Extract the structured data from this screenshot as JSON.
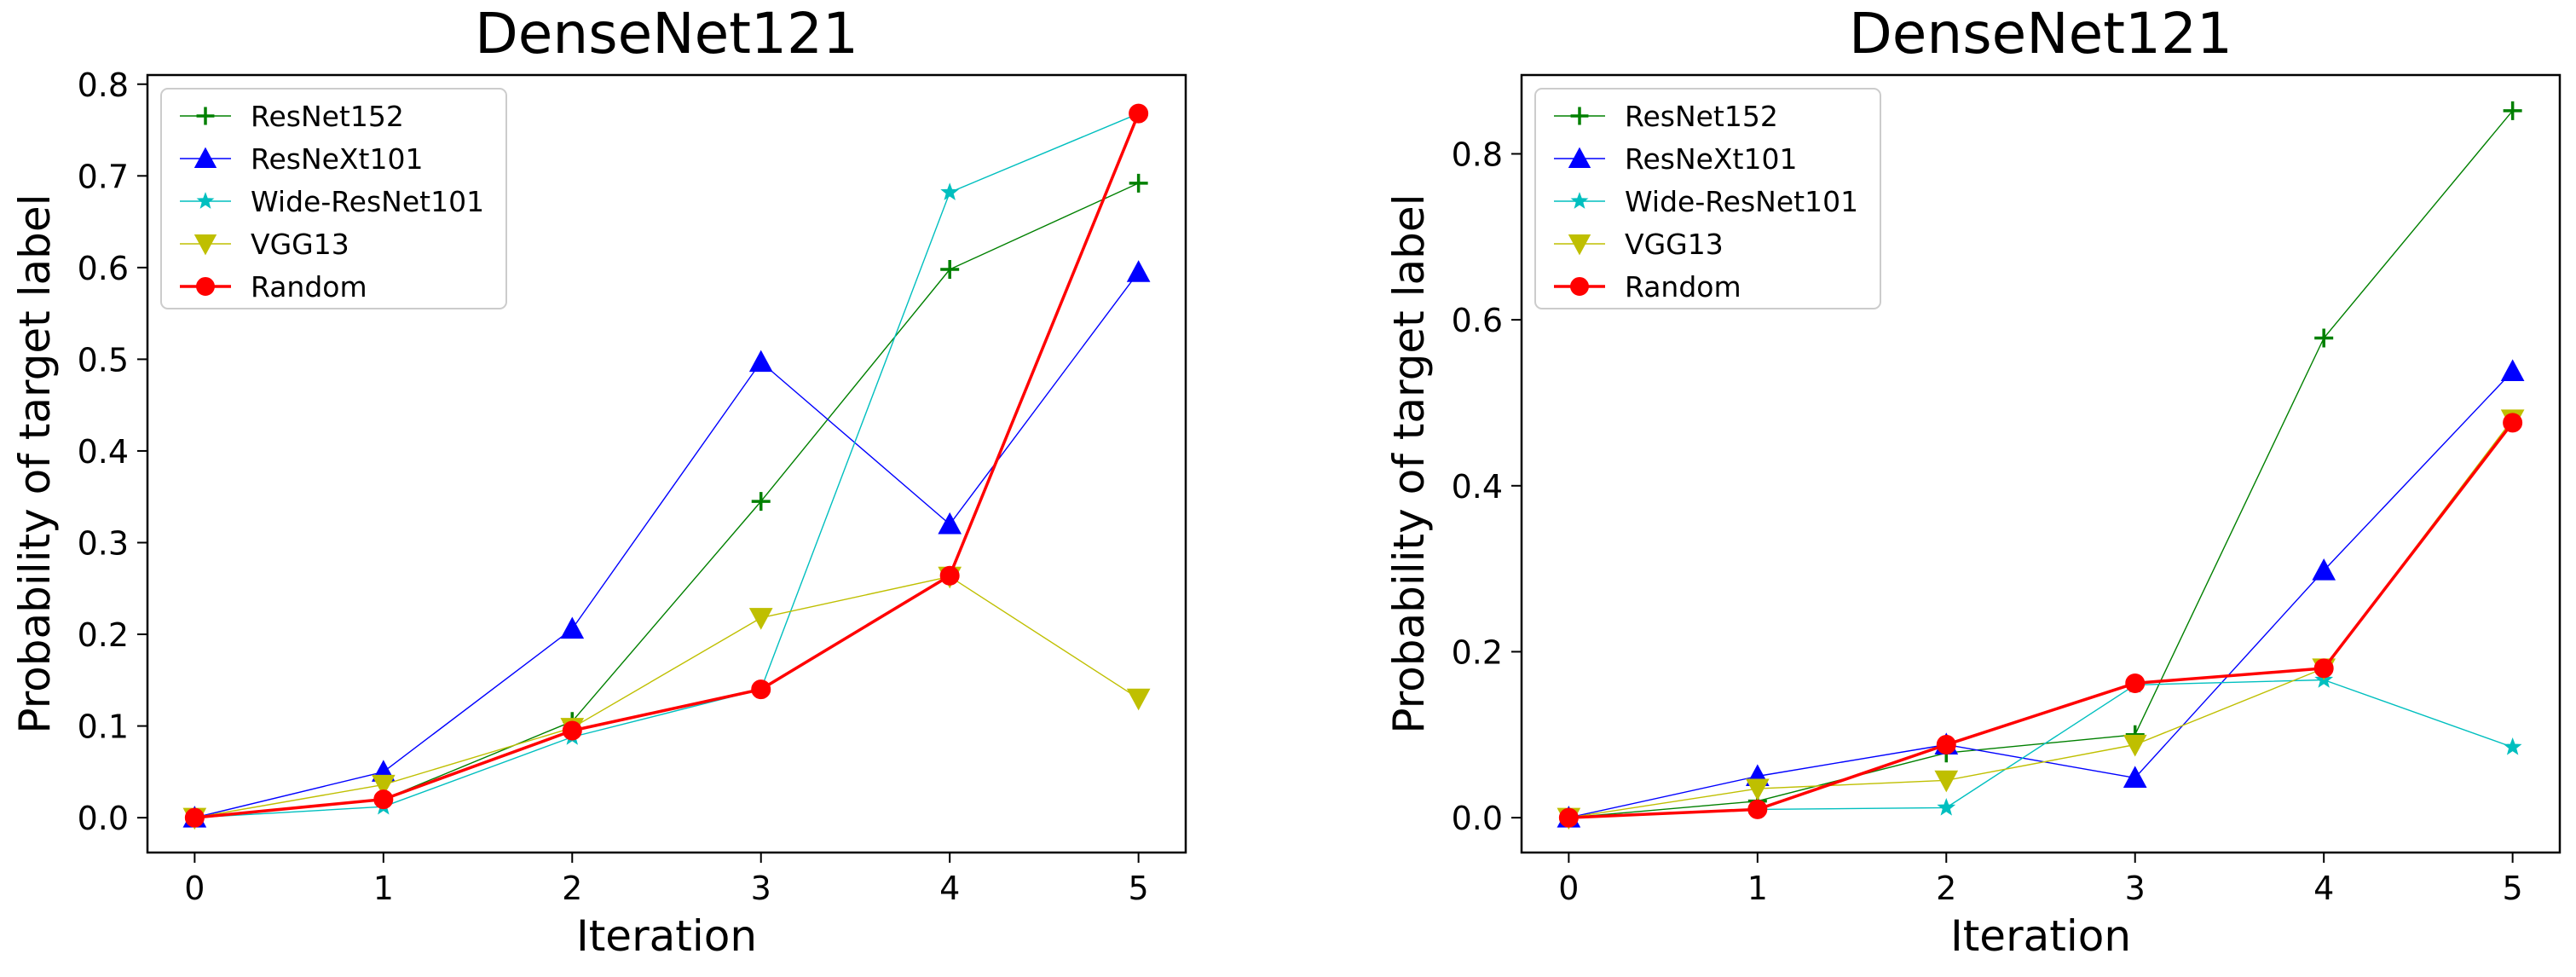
{
  "chart_data": [
    {
      "type": "line",
      "title": "DenseNet121",
      "xlabel": "Iteration",
      "ylabel": "Probability of target label",
      "x": [
        0,
        1,
        2,
        3,
        4,
        5
      ],
      "xticks": [
        "0",
        "1",
        "2",
        "3",
        "4",
        "5"
      ],
      "yticks": [
        0.0,
        0.1,
        0.2,
        0.3,
        0.4,
        0.5,
        0.6,
        0.7,
        0.8
      ],
      "ytick_labels": [
        "0.0",
        "0.1",
        "0.2",
        "0.3",
        "0.4",
        "0.5",
        "0.6",
        "0.7",
        "0.8"
      ],
      "xlim": [
        -0.25,
        5.25
      ],
      "ylim": [
        -0.038,
        0.81
      ],
      "legend_position": "upper-left",
      "series": [
        {
          "name": "ResNet152",
          "color": "#008000",
          "marker": "plus",
          "values": [
            0.0,
            0.02,
            0.105,
            0.345,
            0.598,
            0.692
          ]
        },
        {
          "name": "ResNeXt101",
          "color": "#0000ff",
          "marker": "triangle-up",
          "values": [
            0.0,
            0.05,
            0.206,
            0.497,
            0.32,
            0.595
          ]
        },
        {
          "name": "Wide-ResNet101",
          "color": "#00bfbf",
          "marker": "star",
          "values": [
            0.0,
            0.012,
            0.088,
            0.14,
            0.682,
            0.768
          ]
        },
        {
          "name": "VGG13",
          "color": "#bfbf00",
          "marker": "triangle-down",
          "values": [
            0.0,
            0.036,
            0.098,
            0.218,
            0.263,
            0.13
          ]
        },
        {
          "name": "Random",
          "color": "#ff0000",
          "marker": "circle",
          "values": [
            0.0,
            0.02,
            0.095,
            0.14,
            0.264,
            0.768
          ]
        }
      ]
    },
    {
      "type": "line",
      "title": "DenseNet121",
      "xlabel": "Iteration",
      "ylabel": "Probability of target label",
      "x": [
        0,
        1,
        2,
        3,
        4,
        5
      ],
      "xticks": [
        "0",
        "1",
        "2",
        "3",
        "4",
        "5"
      ],
      "yticks": [
        0.0,
        0.2,
        0.4,
        0.6,
        0.8
      ],
      "ytick_labels": [
        "0.0",
        "0.2",
        "0.4",
        "0.6",
        "0.8"
      ],
      "xlim": [
        -0.25,
        5.25
      ],
      "ylim": [
        -0.042,
        0.895
      ],
      "legend_position": "upper-left",
      "series": [
        {
          "name": "ResNet152",
          "color": "#008000",
          "marker": "plus",
          "values": [
            0.0,
            0.02,
            0.078,
            0.1,
            0.578,
            0.852
          ]
        },
        {
          "name": "ResNeXt101",
          "color": "#0000ff",
          "marker": "triangle-up",
          "values": [
            0.0,
            0.05,
            0.088,
            0.048,
            0.298,
            0.538
          ]
        },
        {
          "name": "Wide-ResNet101",
          "color": "#00bfbf",
          "marker": "star",
          "values": [
            0.0,
            0.01,
            0.012,
            0.16,
            0.166,
            0.085
          ]
        },
        {
          "name": "VGG13",
          "color": "#bfbf00",
          "marker": "triangle-down",
          "values": [
            0.0,
            0.035,
            0.045,
            0.088,
            0.18,
            0.48
          ]
        },
        {
          "name": "Random",
          "color": "#ff0000",
          "marker": "circle",
          "values": [
            0.0,
            0.01,
            0.088,
            0.162,
            0.18,
            0.476
          ]
        }
      ]
    }
  ]
}
